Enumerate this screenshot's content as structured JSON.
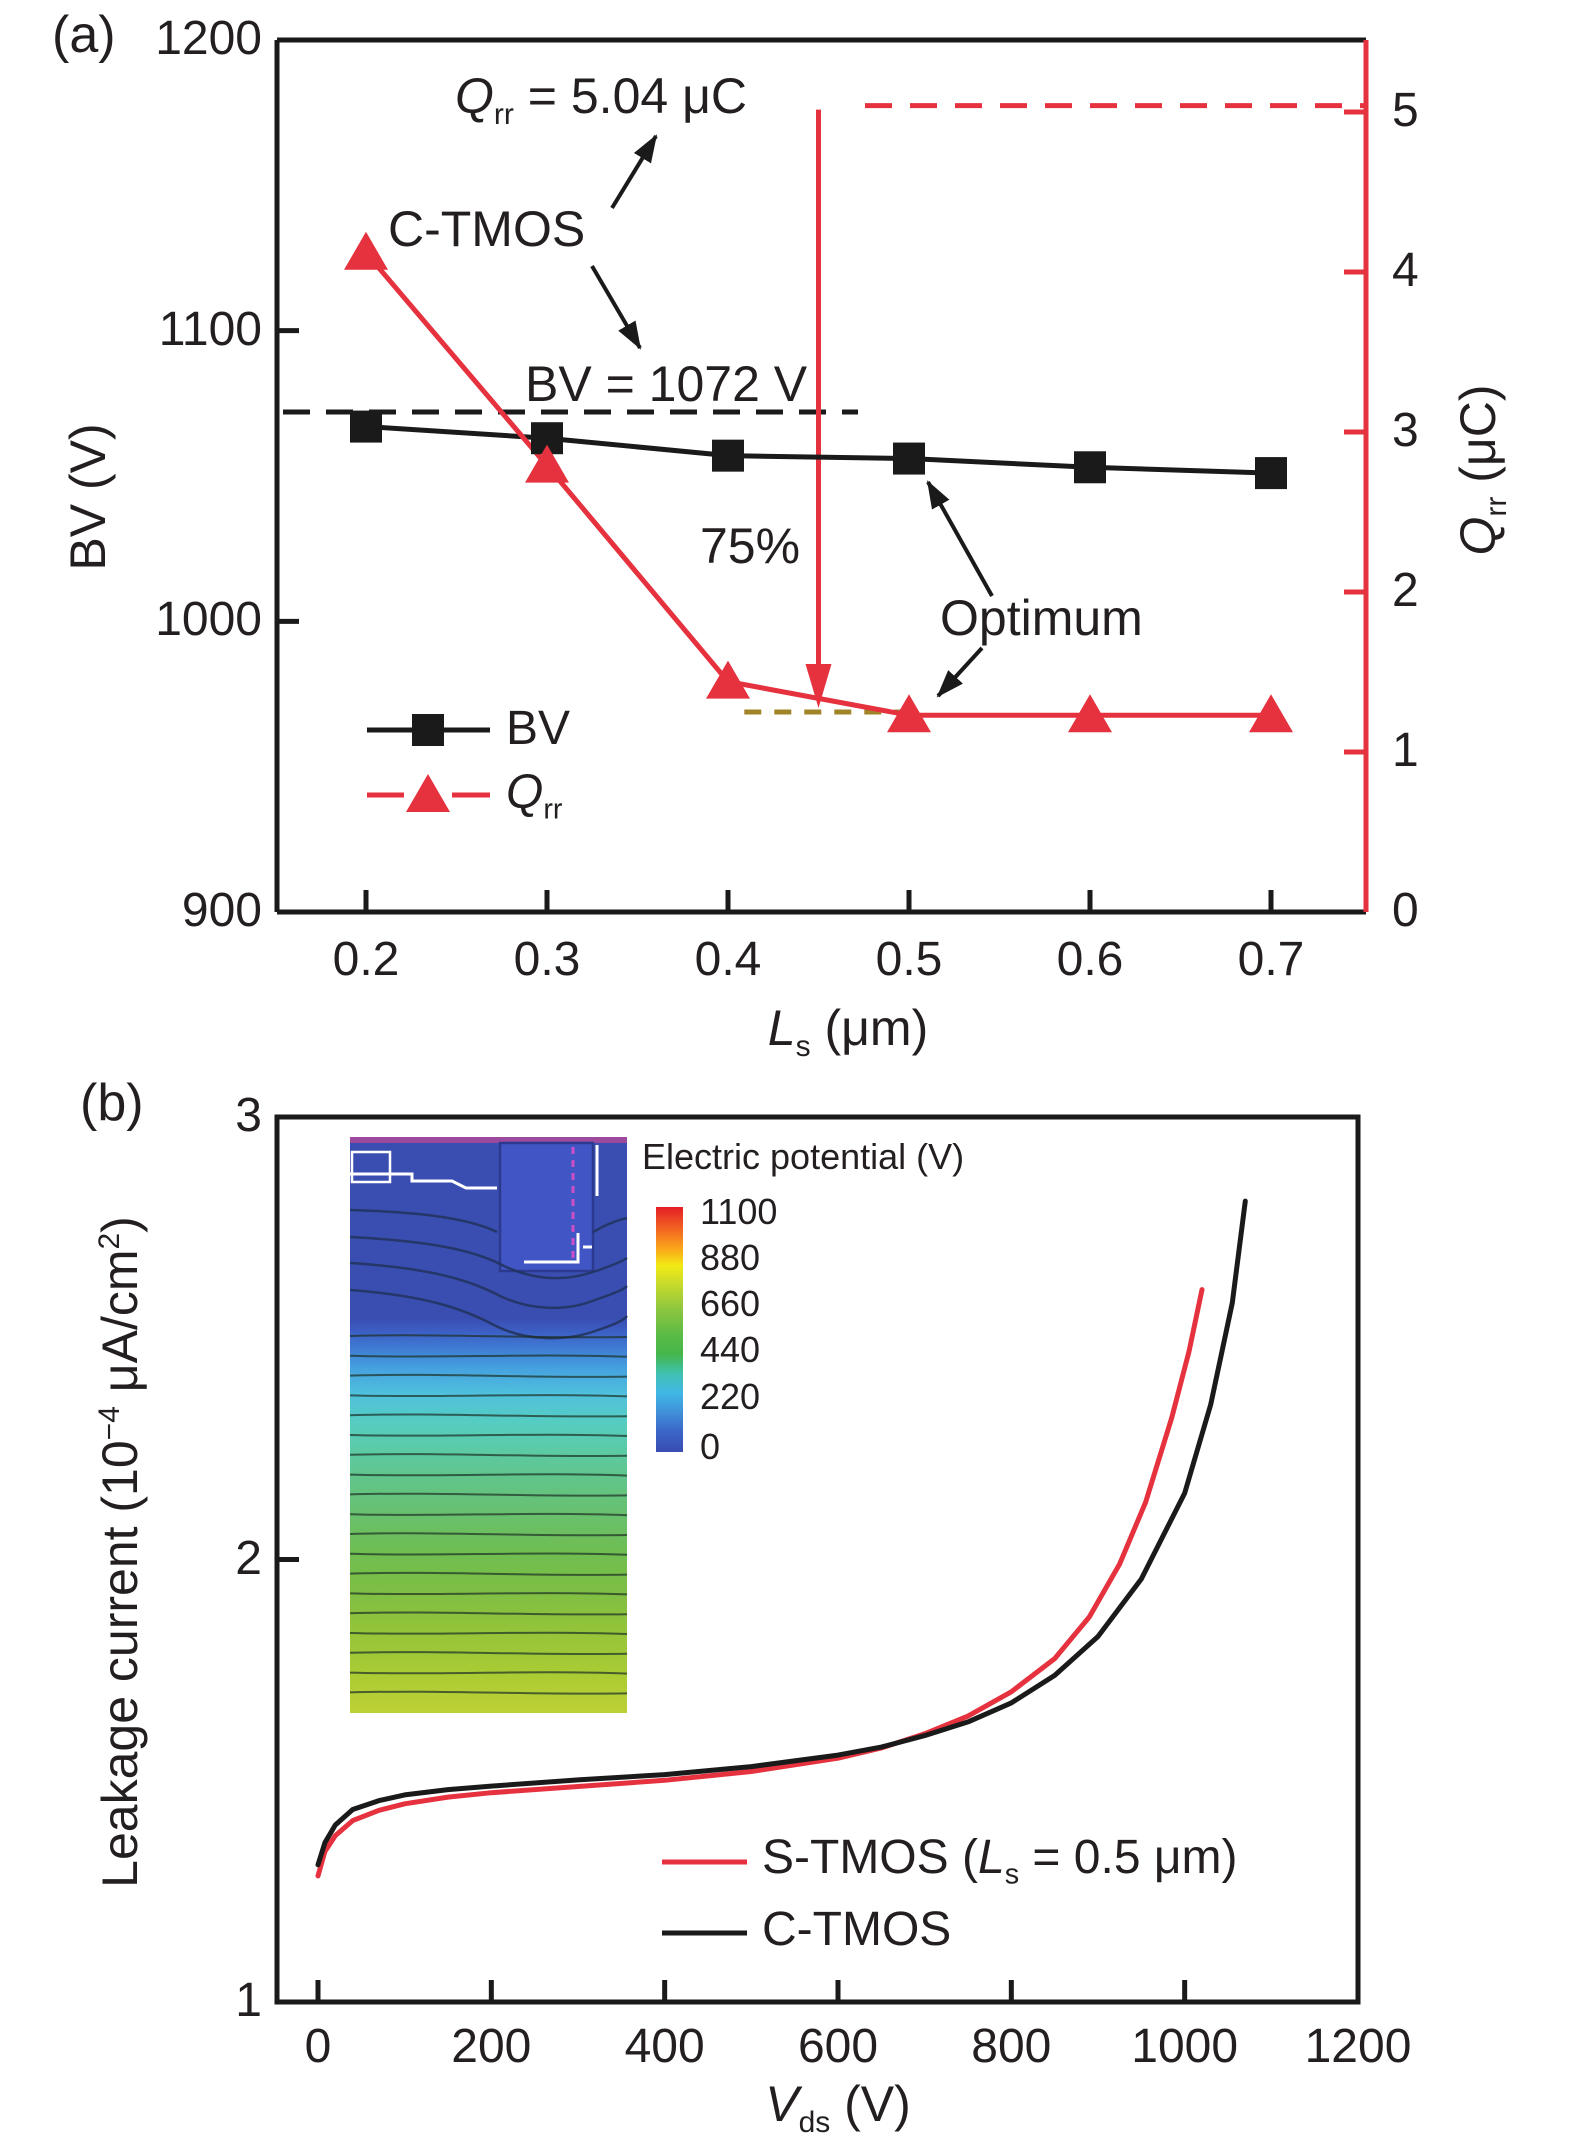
{
  "figure_colors": {
    "black": "#1a1a1a",
    "red": "#e5323e",
    "olive_dash": "#a08428",
    "text": "#231f20"
  },
  "chart_data": [
    {
      "id": "panel_a",
      "type": "line",
      "panel_label": "(a)",
      "x_axis": {
        "label_main": "L",
        "label_sub": "s",
        "label_unit": " (μm)",
        "tick_labels": [
          "0.2",
          "0.3",
          "0.4",
          "0.5",
          "0.6",
          "0.7"
        ],
        "ticks": [
          0.2,
          0.3,
          0.4,
          0.5,
          0.6,
          0.7
        ]
      },
      "y_left": {
        "label": "BV (V)",
        "tick_labels": [
          "1200",
          "1100",
          "1000",
          "900"
        ],
        "ticks": [
          1200,
          1100,
          1000,
          900
        ],
        "range": [
          900,
          1200
        ]
      },
      "y_right": {
        "label_main": "Q",
        "label_sub": "rr",
        "label_unit": " (μC)",
        "tick_labels": [
          "5",
          "4",
          "3",
          "2",
          "1",
          "0"
        ],
        "ticks": [
          5,
          4,
          3,
          2,
          1,
          0
        ],
        "range": [
          0,
          5.45
        ],
        "axis_color": "#e5323e"
      },
      "series": [
        {
          "name": "BV",
          "axis": "left",
          "marker": "square",
          "color": "#1a1a1a",
          "x": [
            0.2,
            0.3,
            0.4,
            0.5,
            0.6,
            0.7
          ],
          "y": [
            1067,
            1063,
            1057,
            1056,
            1053,
            1051
          ]
        },
        {
          "name": "Qrr",
          "axis": "right",
          "marker": "triangle",
          "color": "#e5323e",
          "x": [
            0.2,
            0.3,
            0.4,
            0.5,
            0.6,
            0.7
          ],
          "y": [
            4.12,
            2.79,
            1.44,
            1.23,
            1.23,
            1.23
          ]
        }
      ],
      "legend": [
        {
          "label": "BV",
          "marker": "square",
          "color": "#1a1a1a"
        },
        {
          "label_main": "Q",
          "label_sub": "rr",
          "marker": "triangle",
          "color": "#e5323e"
        }
      ],
      "annotations": {
        "qrr_line": {
          "text_main": "Q",
          "text_sub": "rr",
          "text_rest": " = 5.04 μC",
          "value": 5.04
        },
        "bv_line": {
          "text": "BV = 1072 V",
          "value": 1072
        },
        "c_tmos": {
          "text": "C-TMOS"
        },
        "pct": {
          "text": "75%"
        },
        "optimum": {
          "text": "Optimum"
        },
        "arrow_ls": 0.45,
        "olive": {
          "x0": 0.409,
          "x1": 0.497,
          "value": 1.25,
          "color": "#a08428"
        }
      }
    },
    {
      "id": "panel_b",
      "type": "line",
      "panel_label": "(b)",
      "x_axis": {
        "label_main": "V",
        "label_sub": "ds",
        "label_unit": " (V)",
        "tick_labels": [
          "0",
          "200",
          "400",
          "600",
          "800",
          "1000",
          "1200"
        ],
        "ticks": [
          0,
          200,
          400,
          600,
          800,
          1000,
          1200
        ]
      },
      "y_axis": {
        "label_pre": "Leakage current (10",
        "label_sup": "−4",
        "label_mid": " μA/cm",
        "label_sup2": "2",
        "label_post": ")",
        "tick_labels": [
          "3",
          "2",
          "1"
        ],
        "ticks": [
          3,
          2,
          1
        ],
        "range": [
          1,
          3
        ]
      },
      "series": [
        {
          "name": "S-TMOS",
          "color": "#e5323e",
          "points": [
            [
              0,
              1.285
            ],
            [
              8,
              1.34
            ],
            [
              20,
              1.376
            ],
            [
              40,
              1.41
            ],
            [
              70,
              1.433
            ],
            [
              100,
              1.448
            ],
            [
              150,
              1.463
            ],
            [
              200,
              1.473
            ],
            [
              300,
              1.487
            ],
            [
              400,
              1.501
            ],
            [
              500,
              1.521
            ],
            [
              600,
              1.551
            ],
            [
              650,
              1.574
            ],
            [
              700,
              1.606
            ],
            [
              750,
              1.646
            ],
            [
              800,
              1.701
            ],
            [
              850,
              1.776
            ],
            [
              890,
              1.87
            ],
            [
              925,
              1.99
            ],
            [
              955,
              2.13
            ],
            [
              985,
              2.32
            ],
            [
              1005,
              2.47
            ],
            [
              1020,
              2.61
            ]
          ]
        },
        {
          "name": "C-TMOS",
          "color": "#1a1a1a",
          "points": [
            [
              0,
              1.31
            ],
            [
              8,
              1.36
            ],
            [
              20,
              1.4
            ],
            [
              40,
              1.435
            ],
            [
              70,
              1.455
            ],
            [
              100,
              1.468
            ],
            [
              150,
              1.48
            ],
            [
              200,
              1.488
            ],
            [
              300,
              1.502
            ],
            [
              400,
              1.514
            ],
            [
              500,
              1.532
            ],
            [
              600,
              1.558
            ],
            [
              650,
              1.576
            ],
            [
              700,
              1.602
            ],
            [
              750,
              1.633
            ],
            [
              800,
              1.676
            ],
            [
              850,
              1.738
            ],
            [
              900,
              1.826
            ],
            [
              950,
              1.956
            ],
            [
              1000,
              2.15
            ],
            [
              1030,
              2.35
            ],
            [
              1055,
              2.58
            ],
            [
              1070,
              2.81
            ]
          ]
        }
      ],
      "legend": [
        {
          "color": "#e5323e",
          "label_pre": "S-TMOS (",
          "label_it": "L",
          "label_sub": "s",
          "label_post": " = 0.5 μm)"
        },
        {
          "color": "#1a1a1a",
          "label": "C-TMOS"
        }
      ],
      "inset": {
        "title": "Electric potential (V)",
        "colorbar_labels": [
          "1100",
          "880",
          "660",
          "440",
          "220",
          "0"
        ],
        "colorbar_stops": [
          [
            0,
            "#e31e25"
          ],
          [
            0.09,
            "#f26522"
          ],
          [
            0.17,
            "#faa61a"
          ],
          [
            0.24,
            "#f2ea15"
          ],
          [
            0.32,
            "#c4d92c"
          ],
          [
            0.42,
            "#8cc63f"
          ],
          [
            0.52,
            "#5bbb46"
          ],
          [
            0.6,
            "#45b649"
          ],
          [
            0.68,
            "#3fc1b0"
          ],
          [
            0.76,
            "#41b7e6"
          ],
          [
            0.84,
            "#3f8fd8"
          ],
          [
            0.92,
            "#3a64c8"
          ],
          [
            1,
            "#3a4cb2"
          ]
        ],
        "band_stops": [
          [
            0,
            "#3a4eb2"
          ],
          [
            0.315,
            "#3a4eb2"
          ],
          [
            0.335,
            "#3c5cc2"
          ],
          [
            0.365,
            "#3f79d3"
          ],
          [
            0.4,
            "#45a0df"
          ],
          [
            0.445,
            "#4fc0dd"
          ],
          [
            0.495,
            "#55cdc2"
          ],
          [
            0.545,
            "#5ccaa4"
          ],
          [
            0.6,
            "#62c487"
          ],
          [
            0.66,
            "#69c06b"
          ],
          [
            0.72,
            "#6fbd52"
          ],
          [
            0.785,
            "#7dbe44"
          ],
          [
            0.855,
            "#93c43a"
          ],
          [
            0.93,
            "#aacb34"
          ],
          [
            1,
            "#bdd134"
          ]
        ],
        "top_line_color": "#9c4a9e",
        "trench_fill": "#4156c4",
        "trench_stroke": "#2b3a8e",
        "magenta_dash": "#cc4fc6",
        "contour_color": "#22325c"
      }
    }
  ]
}
